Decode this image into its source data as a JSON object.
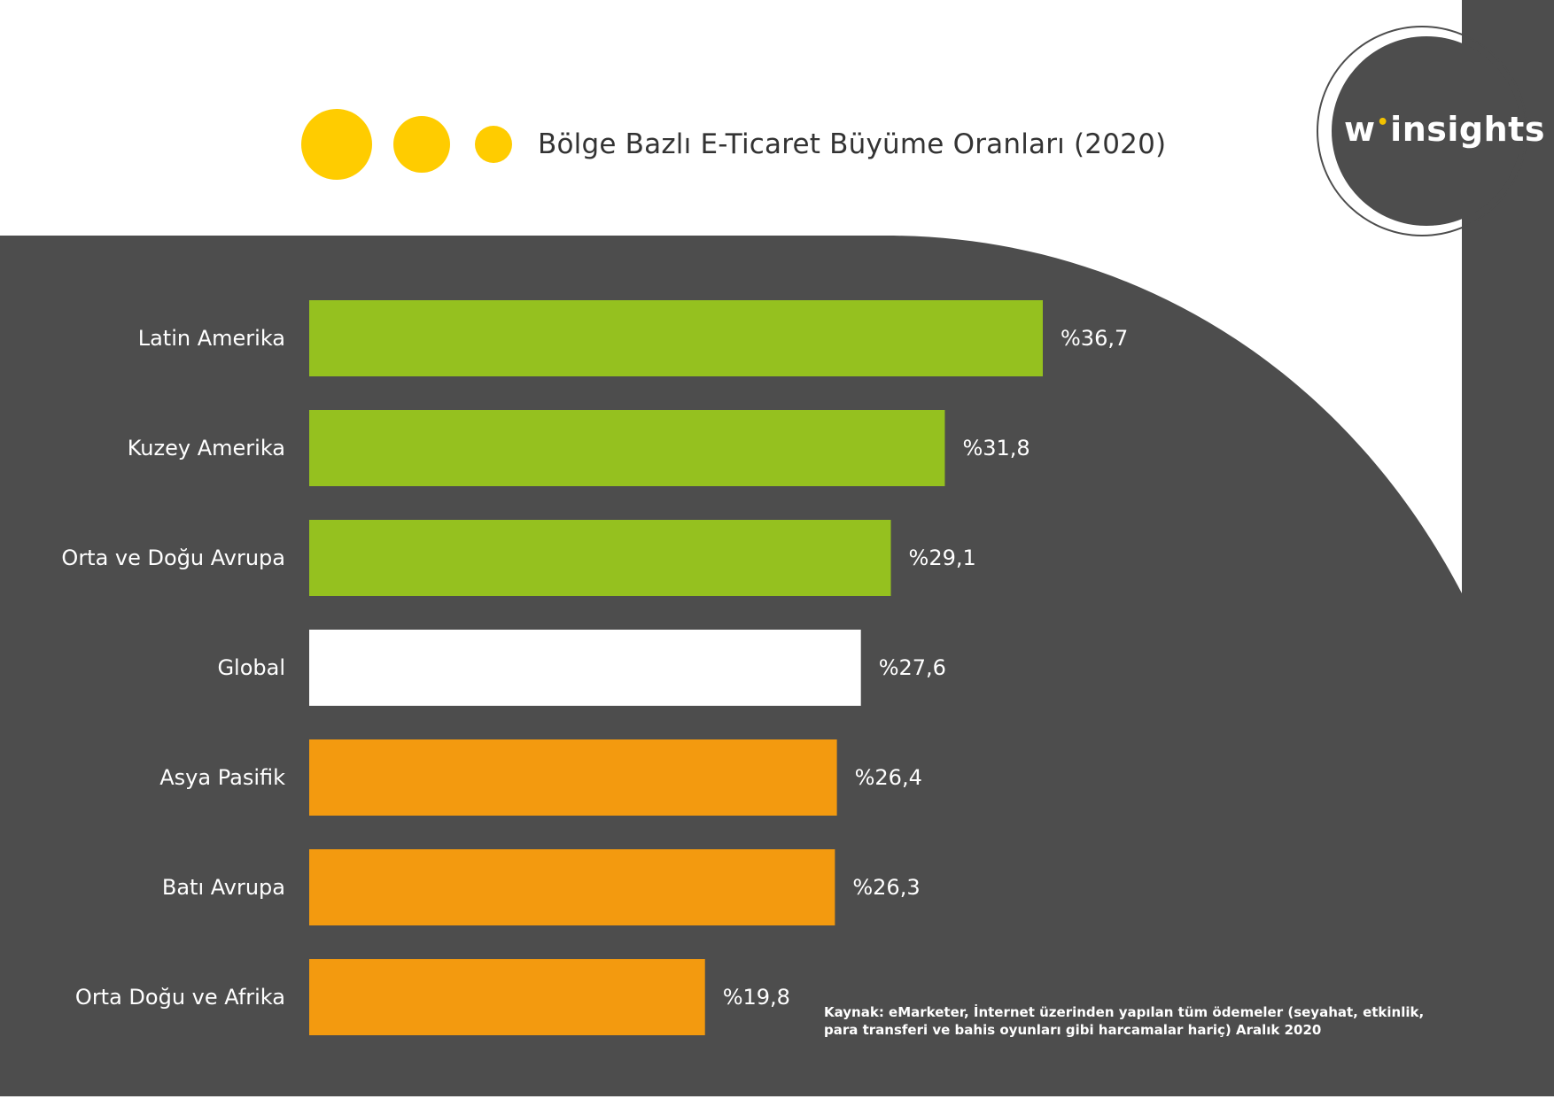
{
  "header": {
    "title": "Bölge Bazlı E-Ticaret Büyüme Oranları (2020)",
    "logo_w": "w",
    "logo_dot": "•",
    "logo_text": "insights"
  },
  "colors": {
    "background_dark": "#4d4d4d",
    "yellow": "#ffcc00",
    "green": "#95c11f",
    "white": "#ffffff",
    "orange": "#f39a0f"
  },
  "chart_data": {
    "type": "bar",
    "orientation": "horizontal",
    "title": "Bölge Bazlı E-Ticaret Büyüme Oranları (2020)",
    "xlabel": "",
    "ylabel": "",
    "xlim": [
      0,
      36.7
    ],
    "categories": [
      "Latin Amerika",
      "Kuzey Amerika",
      "Orta ve Doğu Avrupa",
      "Global",
      "Asya Pasifik",
      "Batı Avrupa",
      "Orta Doğu ve Afrika"
    ],
    "values": [
      36.7,
      31.8,
      29.1,
      27.6,
      26.4,
      26.3,
      19.8
    ],
    "value_labels": [
      "%36,7",
      "%31,8",
      "%29,1",
      "%27,6",
      "%26,4",
      "%26,3",
      "%19,8"
    ],
    "bar_colors": [
      "#95c11f",
      "#95c11f",
      "#95c11f",
      "#ffffff",
      "#f39a0f",
      "#f39a0f",
      "#f39a0f"
    ]
  },
  "footer": {
    "source_line1": "Kaynak: eMarketer, İnternet üzerinden yapılan tüm ödemeler (seyahat, etkinlik,",
    "source_line2": "para transferi ve bahis oyunları gibi harcamalar hariç) Aralık 2020"
  }
}
